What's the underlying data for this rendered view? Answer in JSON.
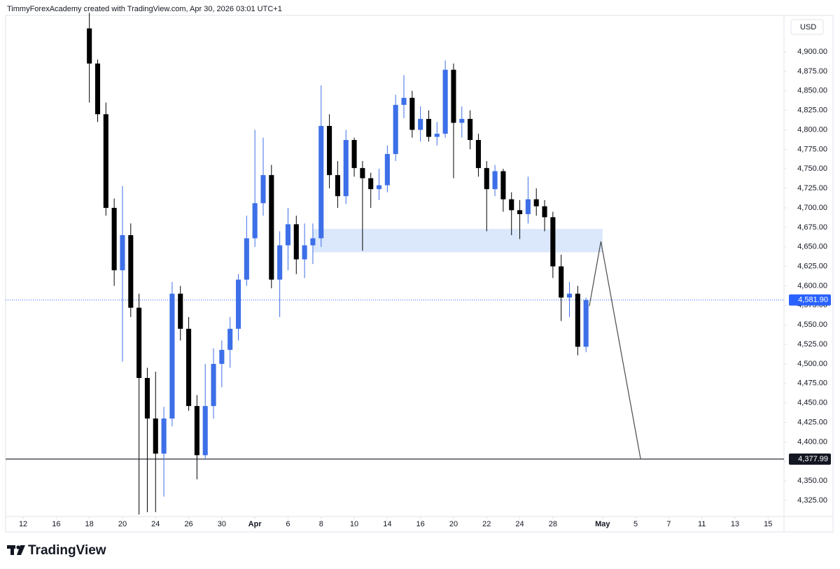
{
  "header": "TimmyForexAcademy created with TradingView.com, Apr 30, 2026 03:01 UTC+1",
  "brand": "TradingView",
  "chart_data": {
    "type": "candlestick",
    "currency": "USD",
    "up_color": "#3d6fe8",
    "down_color": "#000000",
    "xlim": [
      -1.06,
      45.96
    ],
    "ylim": [
      4300,
      4950
    ],
    "xticks": [
      {
        "value": 0,
        "label": "12"
      },
      {
        "value": 2,
        "label": "16"
      },
      {
        "value": 4,
        "label": "18"
      },
      {
        "value": 6,
        "label": "20"
      },
      {
        "value": 8,
        "label": "24"
      },
      {
        "value": 10,
        "label": "26"
      },
      {
        "value": 12,
        "label": "30"
      },
      {
        "value": 14,
        "label": "Apr"
      },
      {
        "value": 16,
        "label": "6"
      },
      {
        "value": 18,
        "label": "8"
      },
      {
        "value": 20,
        "label": "10"
      },
      {
        "value": 22,
        "label": "14"
      },
      {
        "value": 24,
        "label": "16"
      },
      {
        "value": 26,
        "label": "20"
      },
      {
        "value": 28,
        "label": "22"
      },
      {
        "value": 30,
        "label": "24"
      },
      {
        "value": 32,
        "label": "28"
      },
      {
        "value": 35,
        "label": "May"
      },
      {
        "value": 37,
        "label": "5"
      },
      {
        "value": 39,
        "label": "7"
      },
      {
        "value": 41,
        "label": "11"
      },
      {
        "value": 43,
        "label": "13"
      },
      {
        "value": 45,
        "label": "15"
      }
    ],
    "yticks": [
      {
        "value": 4325,
        "label": "4,325.00"
      },
      {
        "value": 4350,
        "label": "4,350.00"
      },
      {
        "value": 4375,
        "label": "4,375.00"
      },
      {
        "value": 4400,
        "label": "4,400.00"
      },
      {
        "value": 4425,
        "label": "4,425.00"
      },
      {
        "value": 4450,
        "label": "4,450.00"
      },
      {
        "value": 4475,
        "label": "4,475.00"
      },
      {
        "value": 4500,
        "label": "4,500.00"
      },
      {
        "value": 4525,
        "label": "4,525.00"
      },
      {
        "value": 4550,
        "label": "4,550.00"
      },
      {
        "value": 4575,
        "label": "4,575.00"
      },
      {
        "value": 4600,
        "label": "4,600.00"
      },
      {
        "value": 4625,
        "label": "4,625.00"
      },
      {
        "value": 4650,
        "label": "4,650.00"
      },
      {
        "value": 4675,
        "label": "4,675.00"
      },
      {
        "value": 4700,
        "label": "4,700.00"
      },
      {
        "value": 4725,
        "label": "4,725.00"
      },
      {
        "value": 4750,
        "label": "4,750.00"
      },
      {
        "value": 4775,
        "label": "4,775.00"
      },
      {
        "value": 4800,
        "label": "4,800.00"
      },
      {
        "value": 4825,
        "label": "4,825.00"
      },
      {
        "value": 4850,
        "label": "4,850.00"
      },
      {
        "value": 4875,
        "label": "4,875.00"
      },
      {
        "value": 4900,
        "label": "4,900.00"
      }
    ],
    "x": [
      4,
      4.5,
      5,
      5.5,
      6,
      6.5,
      7,
      7.5,
      8,
      8.5,
      9,
      9.5,
      10,
      10.5,
      11,
      11.5,
      12,
      12.5,
      13,
      13.5,
      14,
      14.5,
      15,
      15.5,
      16,
      16.5,
      17,
      17.5,
      18,
      18.5,
      19,
      19.5,
      20,
      20.5,
      21,
      21.5,
      22,
      22.5,
      23,
      23.5,
      24,
      24.5,
      25,
      25.5,
      26,
      26.5,
      27,
      27.5,
      28,
      28.5,
      29,
      29.5,
      30,
      30.5,
      31,
      31.5,
      32,
      32.5,
      33,
      33.5,
      34
    ],
    "open": [
      4930,
      4885,
      4820,
      4700,
      4620,
      4665,
      4572,
      4482,
      4430,
      4385,
      4430,
      4590,
      4545,
      4446,
      4383,
      4446,
      4500,
      4518,
      4545,
      4608,
      4661,
      4706,
      4742,
      4608,
      4652,
      4679,
      4634,
      4652,
      4661,
      4805,
      4742,
      4715,
      4787,
      4751,
      4738,
      4724,
      4729,
      4769,
      4832,
      4841,
      4800,
      4814,
      4791,
      4795,
      4877,
      4809,
      4814,
      4787,
      4751,
      4724,
      4747,
      4711,
      4697,
      4692,
      4711,
      4702,
      4688,
      4625,
      4585,
      4590,
      4522
    ],
    "high": [
      4950,
      4890,
      4835,
      4712,
      4728,
      4680,
      4590,
      4495,
      4490,
      4445,
      4605,
      4600,
      4560,
      4460,
      4500,
      4520,
      4530,
      4560,
      4615,
      4690,
      4800,
      4790,
      4755,
      4670,
      4700,
      4690,
      4680,
      4680,
      4857,
      4820,
      4760,
      4800,
      4790,
      4760,
      4745,
      4750,
      4780,
      4845,
      4870,
      4850,
      4830,
      4825,
      4810,
      4889,
      4885,
      4830,
      4825,
      4795,
      4760,
      4755,
      4750,
      4720,
      4710,
      4740,
      4725,
      4710,
      4695,
      4640,
      4605,
      4600,
      4585
    ],
    "low": [
      4835,
      4810,
      4690,
      4600,
      4503,
      4560,
      4307,
      4310,
      4310,
      4330,
      4420,
      4530,
      4440,
      4352,
      4378,
      4430,
      4470,
      4495,
      4530,
      4600,
      4650,
      4690,
      4597,
      4560,
      4620,
      4615,
      4610,
      4628,
      4650,
      4725,
      4700,
      4705,
      4740,
      4645,
      4700,
      4710,
      4720,
      4760,
      4815,
      4790,
      4785,
      4785,
      4780,
      4790,
      4738,
      4790,
      4775,
      4740,
      4670,
      4715,
      4695,
      4665,
      4660,
      4680,
      4690,
      4670,
      4610,
      4555,
      4560,
      4511,
      4515
    ],
    "close": [
      4885,
      4820,
      4700,
      4620,
      4665,
      4572,
      4482,
      4430,
      4385,
      4430,
      4590,
      4545,
      4446,
      4383,
      4446,
      4500,
      4518,
      4545,
      4608,
      4661,
      4706,
      4742,
      4608,
      4652,
      4679,
      4634,
      4652,
      4661,
      4805,
      4742,
      4715,
      4787,
      4751,
      4738,
      4724,
      4729,
      4769,
      4832,
      4841,
      4800,
      4814,
      4791,
      4795,
      4877,
      4809,
      4814,
      4787,
      4751,
      4724,
      4747,
      4711,
      4697,
      4692,
      4711,
      4702,
      4688,
      4625,
      4585,
      4590,
      4522,
      4581.9
    ],
    "price_lines": [
      {
        "value": 4581.9,
        "label": "4,581.90",
        "color": "#2962ff",
        "dotted": true
      },
      {
        "value": 4377.99,
        "label": "4,377.99",
        "color": "#131722",
        "dotted": false
      }
    ],
    "zone": {
      "x": [
        17.5,
        35
      ],
      "y": [
        4643,
        4673
      ],
      "color": "#dbe8fc"
    },
    "projection": {
      "x": [
        34.2,
        34.9,
        37.3
      ],
      "y": [
        4574,
        4657,
        4378
      ],
      "color": "#4a4a4a"
    }
  }
}
